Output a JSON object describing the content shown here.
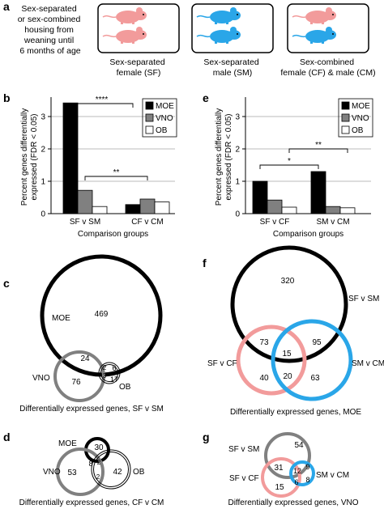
{
  "panel_letters": {
    "a": "a",
    "b": "b",
    "c": "c",
    "d": "d",
    "e": "e",
    "f": "f",
    "g": "g"
  },
  "panel_a": {
    "housing_text": [
      "Sex-separated",
      "or sex-combined",
      "housing from",
      "weaning until",
      "6 months of age"
    ],
    "boxes": [
      {
        "caption": [
          "Sex-separated",
          "female (SF)"
        ],
        "mice": [
          "female",
          "female"
        ]
      },
      {
        "caption": [
          "Sex-separated",
          "male (SM)"
        ],
        "mice": [
          "male",
          "male"
        ]
      },
      {
        "caption": [
          "Sex-combined",
          "female (CF) & male (CM)"
        ],
        "mice": [
          "female",
          "male"
        ]
      }
    ],
    "colors": {
      "female": "#f29b9b",
      "male": "#2aa6e8"
    }
  },
  "legend_entries": [
    "MOE",
    "VNO",
    "OB"
  ],
  "series_colors": {
    "MOE": "#000000",
    "VNO": "#808080",
    "OB": "#ffffff"
  },
  "chart_data": [
    {
      "type": "bar",
      "panel": "b",
      "categories": [
        "SF v SM",
        "CF v CM"
      ],
      "series": [
        {
          "name": "MOE",
          "values": [
            3.42,
            0.28
          ]
        },
        {
          "name": "VNO",
          "values": [
            0.72,
            0.45
          ]
        },
        {
          "name": "OB",
          "values": [
            0.22,
            0.36
          ]
        }
      ],
      "xlabel": "Comparison groups",
      "ylabel": [
        "Percent genes differentially",
        "expressed (FDR < 0.05)"
      ],
      "ylim": [
        0,
        3.5
      ],
      "yticks": [
        "0",
        "1",
        "2",
        "3"
      ],
      "grid": true,
      "legend": "top-right",
      "annotations": [
        {
          "label": "****",
          "from": "SF v SM",
          "to": "CF v CM",
          "series": "MOE"
        },
        {
          "label": "**",
          "from": "SF v SM",
          "to": "CF v CM",
          "series": "VNO"
        }
      ]
    },
    {
      "type": "bar",
      "panel": "e",
      "categories": [
        "SF v CF",
        "SM v CM"
      ],
      "series": [
        {
          "name": "MOE",
          "values": [
            1.0,
            1.3
          ]
        },
        {
          "name": "VNO",
          "values": [
            0.42,
            0.22
          ]
        },
        {
          "name": "OB",
          "values": [
            0.2,
            0.18
          ]
        }
      ],
      "xlabel": "Comparison groups",
      "ylabel": [
        "Percent genes differentially",
        "expressed (FDR < 0.05)"
      ],
      "ylim": [
        0,
        3.5
      ],
      "yticks": [
        "0",
        "1",
        "2",
        "3"
      ],
      "grid": true,
      "legend": "top-right",
      "annotations": [
        {
          "label": "**",
          "from": "SF v CF",
          "to": "SM v CM",
          "series": "OB"
        },
        {
          "label": "*",
          "from": "SF v CF",
          "to": "SM v CM",
          "series": "MOE"
        }
      ]
    }
  ],
  "venn_c": {
    "caption": "Differentially expressed genes, SF v SM",
    "set_labels": {
      "moe": "MOE",
      "vno": "VNO",
      "ob": "OB"
    },
    "counts": {
      "moe_only": "469",
      "moe_vno": "24",
      "vno_only": "76",
      "moe_vno_ob": "2",
      "moe_ob": "6",
      "ob_only": "17",
      "vno_ob": "3"
    }
  },
  "venn_d": {
    "caption": "Differentially expressed genes, CF v CM",
    "set_labels": {
      "moe": "MOE",
      "vno": "VNO",
      "ob": "OB"
    },
    "counts": {
      "moe_only": "30",
      "moe_vno": "8",
      "vno_only": "53",
      "ob_only": "42",
      "moe_vno_ob": "2",
      "vno_ob": "2"
    }
  },
  "venn_f": {
    "caption": "Differentially expressed genes, MOE",
    "set_labels": {
      "sm": "SF v SM",
      "cf": "SF v CF",
      "cm": "SM v CM"
    },
    "counts": {
      "sm_only": "320",
      "sm_cf": "73",
      "sm_cf_cm": "15",
      "sm_cm": "95",
      "cf_only": "40",
      "cf_cm": "20",
      "cm_only": "63"
    }
  },
  "venn_g": {
    "caption": "Differentially expressed genes, VNO",
    "set_labels": {
      "sm": "SF v SM",
      "cf": "SF v CF",
      "cm": "SM v CM"
    },
    "counts": {
      "sm_only": "54",
      "sm_cf": "31",
      "sm_cf_cm": "12",
      "sm_cm": "9",
      "cf_only": "15",
      "cf_cm": "6",
      "cm_only": "8"
    }
  },
  "venn_colors": {
    "black": "#000000",
    "grey": "#808080",
    "pink": "#f29b9b",
    "blue": "#2aa6e8"
  }
}
